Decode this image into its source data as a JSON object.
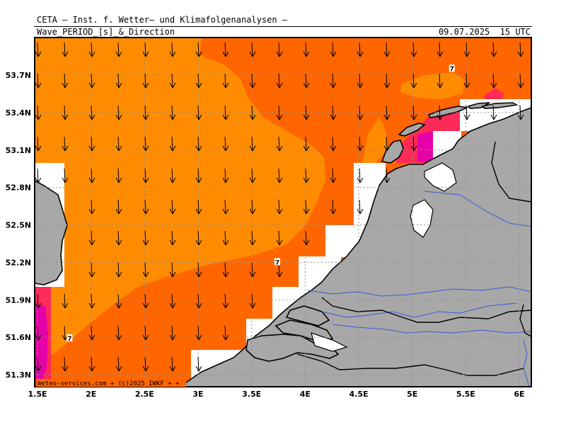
{
  "header": {
    "title": "CETA – Inst. f. Wetter– und Klimafolgenanalysen –",
    "variable": "Wave_PERIOD_[s]_&_Direction",
    "valid_time": "09.07.2025  15 UTC"
  },
  "credit": "meteo-services.com + (c)2025 IWKF + +",
  "colors": {
    "sea_7_8": "#ff8c00",
    "sea_6_7": "#ff6600",
    "sea_5_6": "#ff2a55",
    "sea_4_5": "#e600a8",
    "land": "#a8a8a8",
    "water_no_data": "#ffffff",
    "rivers": "#3a5ad6",
    "grid": "#909090"
  },
  "axes": {
    "x_ticks": [
      "1.5E",
      "2E",
      "2.5E",
      "3E",
      "3.5E",
      "4E",
      "4.5E",
      "5E",
      "5.5E",
      "6E"
    ],
    "y_ticks": [
      "53.7N",
      "53.4N",
      "53.1N",
      "52.8N",
      "52.5N",
      "52.2N",
      "51.9N",
      "51.6N",
      "51.3N"
    ],
    "lon_range": [
      1.5,
      6.05
    ],
    "lat_range": [
      51.2,
      54.0
    ]
  },
  "period_labels": [
    {
      "text": "7",
      "lon": 5.37,
      "lat": 53.75
    },
    {
      "text": "7",
      "lon": 3.74,
      "lat": 52.2
    },
    {
      "text": "7",
      "lon": 1.8,
      "lat": 51.59
    }
  ],
  "arrows": {
    "direction": "south",
    "icon": "arrow-down-icon"
  }
}
